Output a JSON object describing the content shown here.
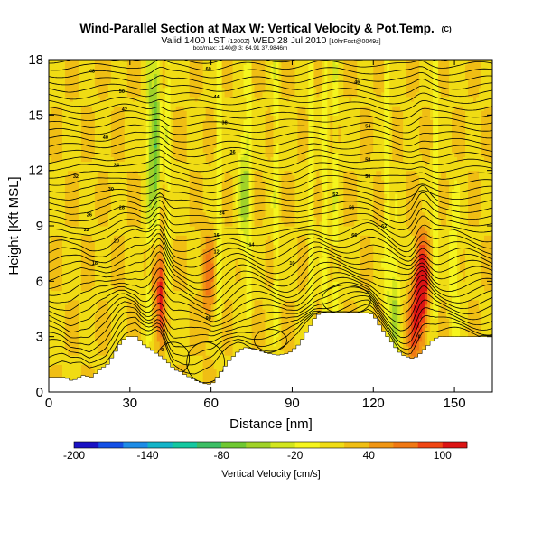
{
  "chart_data": {
    "type": "heatmap",
    "title": "Wind-Parallel Section at Max W: Vertical Velocity & Pot.Temp.",
    "title_mark": "(C)",
    "subtitle_valid": "Valid 1400 LST",
    "subtitle_utc": "(1200Z)",
    "subtitle_date": "WED 28 Jul 2010",
    "subtitle_run": "[10hrFcst@0049z]",
    "subtitle_small": "box/max: 1140@ 3: 64.91 37.9846m",
    "xlabel": "Distance [nm]",
    "ylabel": "Height [Kft MSL]",
    "xlim": [
      0,
      164
    ],
    "ylim": [
      0,
      18
    ],
    "xticks": [
      "0",
      "30",
      "60",
      "90",
      "120",
      "150"
    ],
    "xtick_values": [
      0,
      30,
      60,
      90,
      120,
      150
    ],
    "yticks": [
      "0",
      "3",
      "6",
      "9",
      "12",
      "15",
      "18"
    ],
    "ytick_values": [
      0,
      3,
      6,
      9,
      12,
      15,
      18
    ],
    "colorbar": {
      "label": "Vertical Velocity [cm/s]",
      "tick_labels": [
        "-200",
        "-140",
        "-80",
        "-20",
        "40",
        "100"
      ],
      "bins": [
        -200,
        -180,
        -160,
        -140,
        -120,
        -100,
        -80,
        -60,
        -40,
        -20,
        0,
        20,
        40,
        60,
        80,
        100,
        120
      ],
      "colors": [
        "#1a12c4",
        "#1450e6",
        "#1e8ce6",
        "#14b4c8",
        "#14c8a0",
        "#3cbe64",
        "#6ec832",
        "#a0d228",
        "#d2e61e",
        "#f5f51e",
        "#f0dc14",
        "#f0be14",
        "#f09614",
        "#f07814",
        "#f04614",
        "#dc1414"
      ]
    },
    "terrain_kft": [
      [
        0,
        0.8
      ],
      [
        5,
        0.8
      ],
      [
        8,
        0.6
      ],
      [
        12,
        0.9
      ],
      [
        15,
        0.8
      ],
      [
        18,
        1.2
      ],
      [
        21,
        1.5
      ],
      [
        24,
        2.2
      ],
      [
        26,
        2.7
      ],
      [
        28,
        3.0
      ],
      [
        32,
        3.0
      ],
      [
        34,
        2.6
      ],
      [
        36,
        2.4
      ],
      [
        38,
        2.2
      ],
      [
        40,
        2.0
      ],
      [
        42,
        1.8
      ],
      [
        44,
        1.5
      ],
      [
        46,
        1.2
      ],
      [
        48,
        1.1
      ],
      [
        50,
        0.9
      ],
      [
        54,
        0.6
      ],
      [
        58,
        0.4
      ],
      [
        60,
        0.5
      ],
      [
        62,
        0.9
      ],
      [
        64,
        1.3
      ],
      [
        66,
        1.7
      ],
      [
        68,
        2.0
      ],
      [
        70,
        2.3
      ],
      [
        72,
        2.4
      ],
      [
        76,
        2.3
      ],
      [
        80,
        2.1
      ],
      [
        84,
        2.0
      ],
      [
        88,
        2.1
      ],
      [
        92,
        2.6
      ],
      [
        94,
        3.1
      ],
      [
        96,
        3.6
      ],
      [
        98,
        4.1
      ],
      [
        100,
        4.3
      ],
      [
        110,
        4.3
      ],
      [
        118,
        4.3
      ],
      [
        120,
        4.0
      ],
      [
        122,
        3.5
      ],
      [
        124,
        3.1
      ],
      [
        126,
        2.7
      ],
      [
        128,
        2.3
      ],
      [
        130,
        2.0
      ],
      [
        132,
        1.9
      ],
      [
        134,
        1.8
      ],
      [
        136,
        2.0
      ],
      [
        138,
        2.3
      ],
      [
        140,
        2.6
      ],
      [
        142,
        2.9
      ],
      [
        144,
        3.0
      ],
      [
        150,
        3.0
      ],
      [
        156,
        3.0
      ],
      [
        160,
        3.0
      ],
      [
        164,
        3.0
      ]
    ],
    "updraft_cores": [
      {
        "x": 41,
        "z": 5.5,
        "w": 100
      },
      {
        "x": 138,
        "z": 5.8,
        "w": 120
      },
      {
        "x": 59,
        "z": 6.0,
        "w": 50
      },
      {
        "x": 135,
        "z": 3.5,
        "w": 60
      }
    ],
    "downdraft_cores": [
      {
        "x": 39,
        "z": 13.5,
        "w": -80
      },
      {
        "x": 72,
        "z": 11.0,
        "w": -60
      },
      {
        "x": 150,
        "z": 7.0,
        "w": -40
      },
      {
        "x": 128,
        "z": 4.5,
        "w": -60
      }
    ],
    "contour_labels": [
      {
        "text": "48",
        "x": 16,
        "z": 17.4
      },
      {
        "text": "50",
        "x": 27,
        "z": 16.3
      },
      {
        "text": "60",
        "x": 59,
        "z": 17.5
      },
      {
        "text": "42",
        "x": 28,
        "z": 15.3
      },
      {
        "text": "44",
        "x": 62,
        "z": 16.0
      },
      {
        "text": "38",
        "x": 65,
        "z": 14.6
      },
      {
        "text": "40",
        "x": 21,
        "z": 13.8
      },
      {
        "text": "36",
        "x": 68,
        "z": 13.0
      },
      {
        "text": "34",
        "x": 25,
        "z": 12.3
      },
      {
        "text": "32",
        "x": 10,
        "z": 11.7
      },
      {
        "text": "30",
        "x": 23,
        "z": 11.0
      },
      {
        "text": "28",
        "x": 27,
        "z": 10.0
      },
      {
        "text": "26",
        "x": 15,
        "z": 9.6
      },
      {
        "text": "22",
        "x": 14,
        "z": 8.8
      },
      {
        "text": "20",
        "x": 25,
        "z": 8.2
      },
      {
        "text": "18",
        "x": 17,
        "z": 7.0
      },
      {
        "text": "24",
        "x": 64,
        "z": 9.7
      },
      {
        "text": "16",
        "x": 62,
        "z": 8.5
      },
      {
        "text": "12",
        "x": 62,
        "z": 7.6
      },
      {
        "text": "14",
        "x": 75,
        "z": 8.0
      },
      {
        "text": "10",
        "x": 90,
        "z": 7.0
      },
      {
        "text": "46",
        "x": 114,
        "z": 16.8
      },
      {
        "text": "54",
        "x": 118,
        "z": 14.4
      },
      {
        "text": "58",
        "x": 118,
        "z": 12.6
      },
      {
        "text": "50",
        "x": 118,
        "z": 11.7
      },
      {
        "text": "52",
        "x": 106,
        "z": 10.7
      },
      {
        "text": "56",
        "x": 112,
        "z": 10.0
      },
      {
        "text": "62",
        "x": 124,
        "z": 9.0
      },
      {
        "text": "66",
        "x": 113,
        "z": 8.5
      },
      {
        "text": "90",
        "x": 59,
        "z": 4.0
      },
      {
        "text": "0",
        "x": 42,
        "z": 2.3
      },
      {
        "text": "0",
        "x": 137,
        "z": 3.0
      }
    ]
  }
}
